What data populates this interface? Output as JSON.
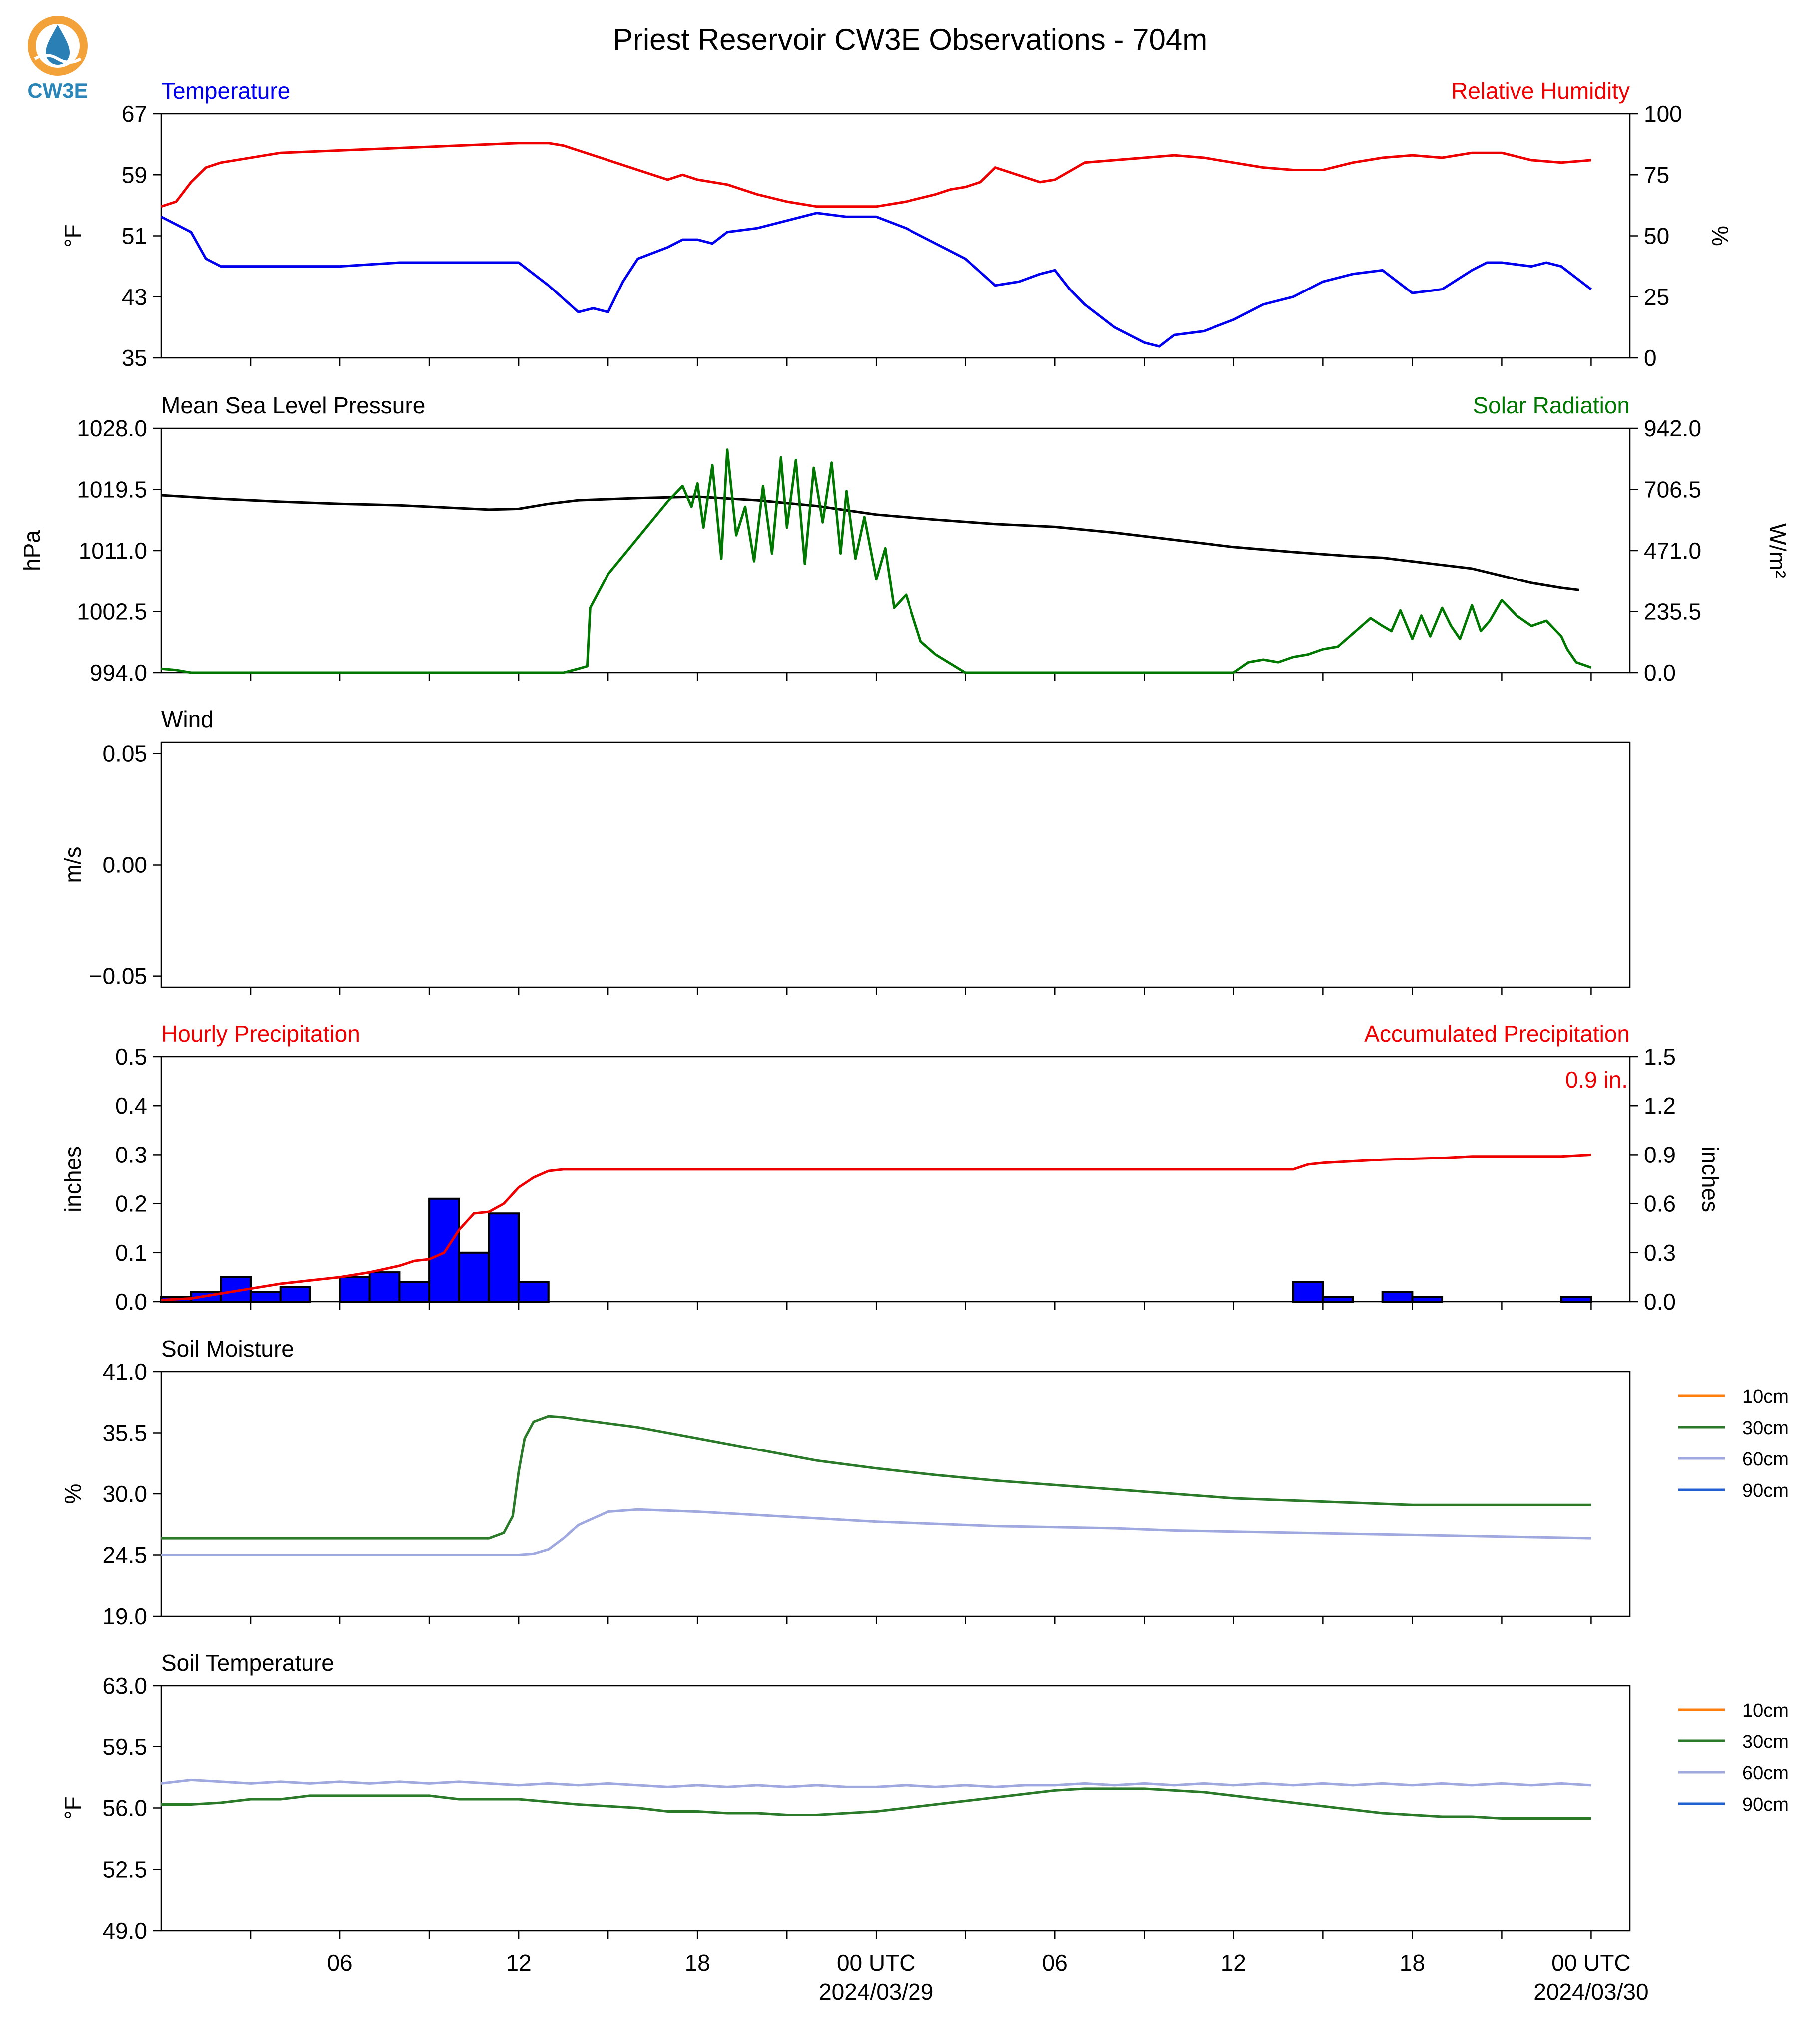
{
  "title": "Priest Reservoir CW3E Observations - 704m",
  "logo": {
    "text": "CW3E",
    "colors": {
      "ring": "#f3a23a",
      "drop": "#2a7fb5",
      "text": "#2a86b8"
    }
  },
  "x_axis": {
    "tick_labels": [
      "06",
      "12",
      "18",
      "00 UTC",
      "06",
      "12",
      "18",
      "00 UTC"
    ],
    "date_labels": [
      "2024/03/29",
      "2024/03/30"
    ]
  },
  "chart_data": [
    {
      "id": "temp_rh",
      "type": "line",
      "left_title": "Temperature",
      "right_title": "Relative Humidity",
      "left_ylabel": "°F",
      "right_ylabel": "%",
      "left_ylim": [
        35,
        67
      ],
      "right_ylim": [
        0,
        100
      ],
      "left_ticks": [
        "35",
        "43",
        "51",
        "59",
        "67"
      ],
      "right_ticks": [
        "0",
        "25",
        "50",
        "75",
        "100"
      ],
      "series": [
        {
          "name": "Temperature",
          "axis": "left",
          "color": "#0000ee",
          "x": [
            0,
            1,
            1.5,
            2,
            4,
            6,
            8,
            10,
            11,
            12,
            12.5,
            13,
            14,
            14.5,
            15,
            15.5,
            16,
            17,
            17.5,
            18,
            18.5,
            19,
            20,
            21,
            22,
            23,
            24,
            25,
            26,
            27,
            28,
            28.8,
            29.5,
            30,
            30.5,
            31,
            32,
            33,
            33.5,
            34,
            35,
            36,
            37,
            38,
            39,
            40,
            41,
            42,
            43,
            44,
            44.5,
            45,
            46,
            46.5,
            47,
            48
          ],
          "y": [
            53.5,
            51.5,
            48,
            47,
            47,
            47,
            47.5,
            47.5,
            47.5,
            47.5,
            46,
            44.5,
            41,
            41.5,
            41,
            45,
            48,
            49.5,
            50.5,
            50.5,
            50,
            51.5,
            52,
            53,
            54,
            53.5,
            53.5,
            52,
            50,
            48,
            44.5,
            45,
            46,
            46.5,
            44,
            42,
            39,
            37,
            36.5,
            38,
            38.5,
            40,
            42,
            43,
            45,
            46,
            46.5,
            43.5,
            44,
            46.5,
            47.5,
            47.5,
            47,
            47.5,
            47,
            44
          ]
        },
        {
          "name": "Relative Humidity",
          "axis": "right",
          "color": "#ee0000",
          "x": [
            0,
            0.5,
            1,
            1.5,
            2,
            4,
            6,
            8,
            10,
            12,
            13,
            13.5,
            14,
            15,
            16,
            17,
            17.5,
            18,
            19,
            20,
            21,
            22,
            23,
            24,
            25,
            26,
            26.5,
            27,
            27.5,
            28,
            28.5,
            29,
            29.5,
            30,
            31,
            32,
            34,
            35,
            36,
            37,
            38,
            39,
            40,
            41,
            42,
            43,
            44,
            45,
            46,
            47,
            48
          ],
          "y": [
            62,
            64,
            72,
            78,
            80,
            84,
            85,
            86,
            87,
            88,
            88,
            87,
            85,
            81,
            77,
            73,
            75,
            73,
            71,
            67,
            64,
            62,
            62,
            62,
            64,
            67,
            69,
            70,
            72,
            78,
            76,
            74,
            72,
            73,
            80,
            81,
            83,
            82,
            80,
            78,
            77,
            77,
            80,
            82,
            83,
            82,
            84,
            84,
            81,
            80,
            81
          ]
        }
      ]
    },
    {
      "id": "pressure_solar",
      "type": "line",
      "left_title": "Mean Sea Level Pressure",
      "right_title": "Solar Radiation",
      "left_ylabel": "hPa",
      "right_ylabel": "W/m²",
      "left_ylim": [
        994.0,
        1028.0
      ],
      "right_ylim": [
        0.0,
        942.0
      ],
      "left_ticks": [
        "994.0",
        "1002.5",
        "1011.0",
        "1019.5",
        "1028.0"
      ],
      "right_ticks": [
        "0.0",
        "235.5",
        "471.0",
        "706.5",
        "942.0"
      ],
      "series": [
        {
          "name": "Mean Sea Level Pressure",
          "axis": "left",
          "color": "#000000",
          "x": [
            0,
            2,
            4,
            6,
            8,
            10,
            11,
            12,
            13,
            14,
            16,
            18,
            20,
            22,
            24,
            26,
            28,
            30,
            32,
            34,
            36,
            38,
            39,
            40,
            41,
            42,
            43,
            44,
            45,
            46,
            47,
            47.6
          ],
          "y": [
            1018.7,
            1018.2,
            1017.8,
            1017.5,
            1017.3,
            1016.9,
            1016.7,
            1016.8,
            1017.5,
            1018.0,
            1018.3,
            1018.5,
            1018.0,
            1017.2,
            1016.0,
            1015.3,
            1014.7,
            1014.3,
            1013.5,
            1012.5,
            1011.5,
            1010.8,
            1010.5,
            1010.2,
            1010.0,
            1009.5,
            1009.0,
            1008.5,
            1007.5,
            1006.5,
            1005.8,
            1005.5
          ]
        },
        {
          "name": "Solar Radiation",
          "axis": "right",
          "color": "#007700",
          "x": [
            0,
            0.5,
            1,
            13.5,
            14,
            14.3,
            14.4,
            15,
            16,
            17,
            17.5,
            17.8,
            18,
            18.2,
            18.5,
            18.8,
            19,
            19.3,
            19.6,
            19.9,
            20.2,
            20.5,
            20.8,
            21,
            21.3,
            21.6,
            21.9,
            22.2,
            22.5,
            22.8,
            23,
            23.3,
            23.6,
            24,
            24.3,
            24.6,
            25,
            25.5,
            26,
            27,
            36,
            36.5,
            37,
            37.5,
            38,
            38.5,
            39,
            39.5,
            40,
            40.3,
            40.6,
            41,
            41.3,
            41.6,
            42,
            42.3,
            42.6,
            43,
            43.3,
            43.6,
            44,
            44.3,
            44.6,
            45,
            45.5,
            46,
            46.5,
            47,
            47.2,
            47.5,
            48
          ],
          "y": [
            15,
            10,
            0,
            0,
            15,
            25,
            250,
            380,
            520,
            660,
            720,
            640,
            730,
            560,
            800,
            440,
            860,
            530,
            640,
            430,
            720,
            460,
            830,
            560,
            820,
            420,
            790,
            580,
            810,
            460,
            700,
            440,
            600,
            360,
            480,
            250,
            300,
            120,
            70,
            0,
            0,
            40,
            50,
            40,
            60,
            70,
            90,
            100,
            150,
            180,
            210,
            180,
            160,
            240,
            130,
            220,
            140,
            250,
            180,
            130,
            260,
            160,
            200,
            280,
            220,
            180,
            200,
            140,
            90,
            40,
            20
          ]
        }
      ]
    },
    {
      "id": "wind",
      "type": "line",
      "left_title": "Wind",
      "left_ylabel": "m/s",
      "left_ylim": [
        -0.055,
        0.055
      ],
      "left_ticks": [
        "−0.05",
        "0.00",
        "0.05"
      ],
      "left_tick_values": [
        -0.05,
        0.0,
        0.05
      ],
      "series": []
    },
    {
      "id": "precip",
      "type": "bar",
      "left_title": "Hourly Precipitation",
      "right_title": "Accumulated Precipitation",
      "annotation": "0.9 in.",
      "left_ylabel": "inches",
      "right_ylabel": "inches",
      "left_ylim": [
        0.0,
        0.5
      ],
      "right_ylim": [
        0.0,
        1.5
      ],
      "left_ticks": [
        "0.0",
        "0.1",
        "0.2",
        "0.3",
        "0.4",
        "0.5"
      ],
      "right_ticks": [
        "0.0",
        "0.3",
        "0.6",
        "0.9",
        "1.2",
        "1.5"
      ],
      "bars": {
        "name": "Hourly Precipitation",
        "color": "#0000ff",
        "hours": [
          0,
          1,
          2,
          3,
          4,
          5,
          6,
          7,
          8,
          9,
          10,
          11,
          12,
          13,
          38,
          39,
          40,
          41,
          42,
          43,
          44,
          45,
          46,
          47
        ],
        "values": [
          0.01,
          0.02,
          0.05,
          0.02,
          0.03,
          0.0,
          0.05,
          0.06,
          0.04,
          0.21,
          0.1,
          0.18,
          0.04,
          0.0,
          0.04,
          0.01,
          0.0,
          0.02,
          0.01,
          0.0,
          0.0,
          0.0,
          0.0,
          0.01
        ]
      },
      "series": [
        {
          "name": "Accumulated Precipitation",
          "axis": "right",
          "color": "#ee0000",
          "x": [
            0,
            1,
            2,
            3,
            4,
            5,
            6,
            7,
            8,
            8.5,
            9,
            9.5,
            10,
            10.5,
            11,
            11.5,
            12,
            12.5,
            13,
            13.5,
            38,
            38.5,
            39,
            41,
            43,
            44,
            45,
            46,
            47,
            48
          ],
          "y": [
            0.01,
            0.02,
            0.05,
            0.08,
            0.11,
            0.13,
            0.15,
            0.18,
            0.22,
            0.25,
            0.26,
            0.3,
            0.44,
            0.54,
            0.55,
            0.6,
            0.7,
            0.76,
            0.8,
            0.81,
            0.81,
            0.84,
            0.85,
            0.87,
            0.88,
            0.89,
            0.89,
            0.89,
            0.89,
            0.9
          ]
        }
      ]
    },
    {
      "id": "soil_moisture",
      "type": "line",
      "left_title": "Soil Moisture",
      "left_ylabel": "%",
      "left_ylim": [
        19.0,
        41.0
      ],
      "left_ticks": [
        "19.0",
        "24.5",
        "30.0",
        "35.5",
        "41.0"
      ],
      "legend": {
        "placement": "right",
        "entries": [
          {
            "name": "10cm",
            "color": "#ff7f0e"
          },
          {
            "name": "30cm",
            "color": "#2a7a2a"
          },
          {
            "name": "60cm",
            "color": "#a0a8e0"
          },
          {
            "name": "90cm",
            "color": "#2060d0"
          }
        ]
      },
      "series": [
        {
          "name": "30cm",
          "axis": "left",
          "color": "#2a7a2a",
          "x": [
            0,
            2,
            4,
            6,
            8,
            10,
            11,
            11.5,
            11.8,
            12,
            12.2,
            12.5,
            13,
            13.5,
            14,
            16,
            18,
            20,
            22,
            24,
            26,
            28,
            30,
            32,
            34,
            36,
            38,
            40,
            42,
            44,
            46,
            48
          ],
          "y": [
            26.0,
            26.0,
            26.0,
            26.0,
            26.0,
            26.0,
            26.0,
            26.5,
            28.0,
            32.0,
            35.0,
            36.5,
            37.0,
            36.9,
            36.7,
            36.0,
            35.0,
            34.0,
            33.0,
            32.3,
            31.7,
            31.2,
            30.8,
            30.4,
            30.0,
            29.6,
            29.4,
            29.2,
            29.0,
            29.0,
            29.0,
            29.0
          ]
        },
        {
          "name": "60cm",
          "axis": "left",
          "color": "#a0a8e0",
          "x": [
            0,
            4,
            8,
            10,
            12,
            12.5,
            13,
            13.5,
            14,
            15,
            16,
            18,
            20,
            22,
            24,
            26,
            28,
            30,
            32,
            34,
            36,
            38,
            40,
            42,
            44,
            46,
            48
          ],
          "y": [
            24.5,
            24.5,
            24.5,
            24.5,
            24.5,
            24.6,
            25.0,
            26.0,
            27.2,
            28.4,
            28.6,
            28.4,
            28.1,
            27.8,
            27.5,
            27.3,
            27.1,
            27.0,
            26.9,
            26.7,
            26.6,
            26.5,
            26.4,
            26.3,
            26.2,
            26.1,
            26.0
          ]
        }
      ]
    },
    {
      "id": "soil_temperature",
      "type": "line",
      "left_title": "Soil Temperature",
      "left_ylabel": "°F",
      "left_ylim": [
        49.0,
        63.0
      ],
      "left_ticks": [
        "49.0",
        "52.5",
        "56.0",
        "59.5",
        "63.0"
      ],
      "legend": {
        "placement": "right",
        "entries": [
          {
            "name": "10cm",
            "color": "#ff7f0e"
          },
          {
            "name": "30cm",
            "color": "#2a7a2a"
          },
          {
            "name": "60cm",
            "color": "#a0a8e0"
          },
          {
            "name": "90cm",
            "color": "#2060d0"
          }
        ]
      },
      "series": [
        {
          "name": "30cm",
          "axis": "left",
          "color": "#2a7a2a",
          "x": [
            0,
            1,
            2,
            3,
            4,
            5,
            8,
            9,
            10,
            12,
            14,
            16,
            17,
            18,
            19,
            20,
            21,
            22,
            23,
            24,
            25,
            26,
            27,
            28,
            29,
            30,
            31,
            32,
            33,
            34,
            35,
            36,
            37,
            38,
            39,
            40,
            41,
            42,
            43,
            44,
            45,
            46,
            47,
            48
          ],
          "y": [
            56.2,
            56.2,
            56.3,
            56.5,
            56.5,
            56.7,
            56.7,
            56.7,
            56.5,
            56.5,
            56.2,
            56.0,
            55.8,
            55.8,
            55.7,
            55.7,
            55.6,
            55.6,
            55.7,
            55.8,
            56.0,
            56.2,
            56.4,
            56.6,
            56.8,
            57.0,
            57.1,
            57.1,
            57.1,
            57.0,
            56.9,
            56.7,
            56.5,
            56.3,
            56.1,
            55.9,
            55.7,
            55.6,
            55.5,
            55.5,
            55.4,
            55.4,
            55.4,
            55.4
          ]
        },
        {
          "name": "60cm",
          "axis": "left",
          "color": "#a0a8e0",
          "x": [
            0,
            1,
            2,
            3,
            4,
            5,
            6,
            7,
            8,
            9,
            10,
            11,
            12,
            13,
            14,
            15,
            16,
            17,
            18,
            19,
            20,
            21,
            22,
            23,
            24,
            25,
            26,
            27,
            28,
            29,
            30,
            31,
            32,
            33,
            34,
            35,
            36,
            37,
            38,
            39,
            40,
            41,
            42,
            43,
            44,
            45,
            46,
            47,
            48
          ],
          "y": [
            57.4,
            57.6,
            57.5,
            57.4,
            57.5,
            57.4,
            57.5,
            57.4,
            57.5,
            57.4,
            57.5,
            57.4,
            57.3,
            57.4,
            57.3,
            57.4,
            57.3,
            57.2,
            57.3,
            57.2,
            57.3,
            57.2,
            57.3,
            57.2,
            57.2,
            57.3,
            57.2,
            57.3,
            57.2,
            57.3,
            57.3,
            57.4,
            57.3,
            57.4,
            57.3,
            57.4,
            57.3,
            57.4,
            57.3,
            57.4,
            57.3,
            57.4,
            57.3,
            57.4,
            57.3,
            57.4,
            57.3,
            57.4,
            57.3
          ]
        }
      ]
    }
  ]
}
